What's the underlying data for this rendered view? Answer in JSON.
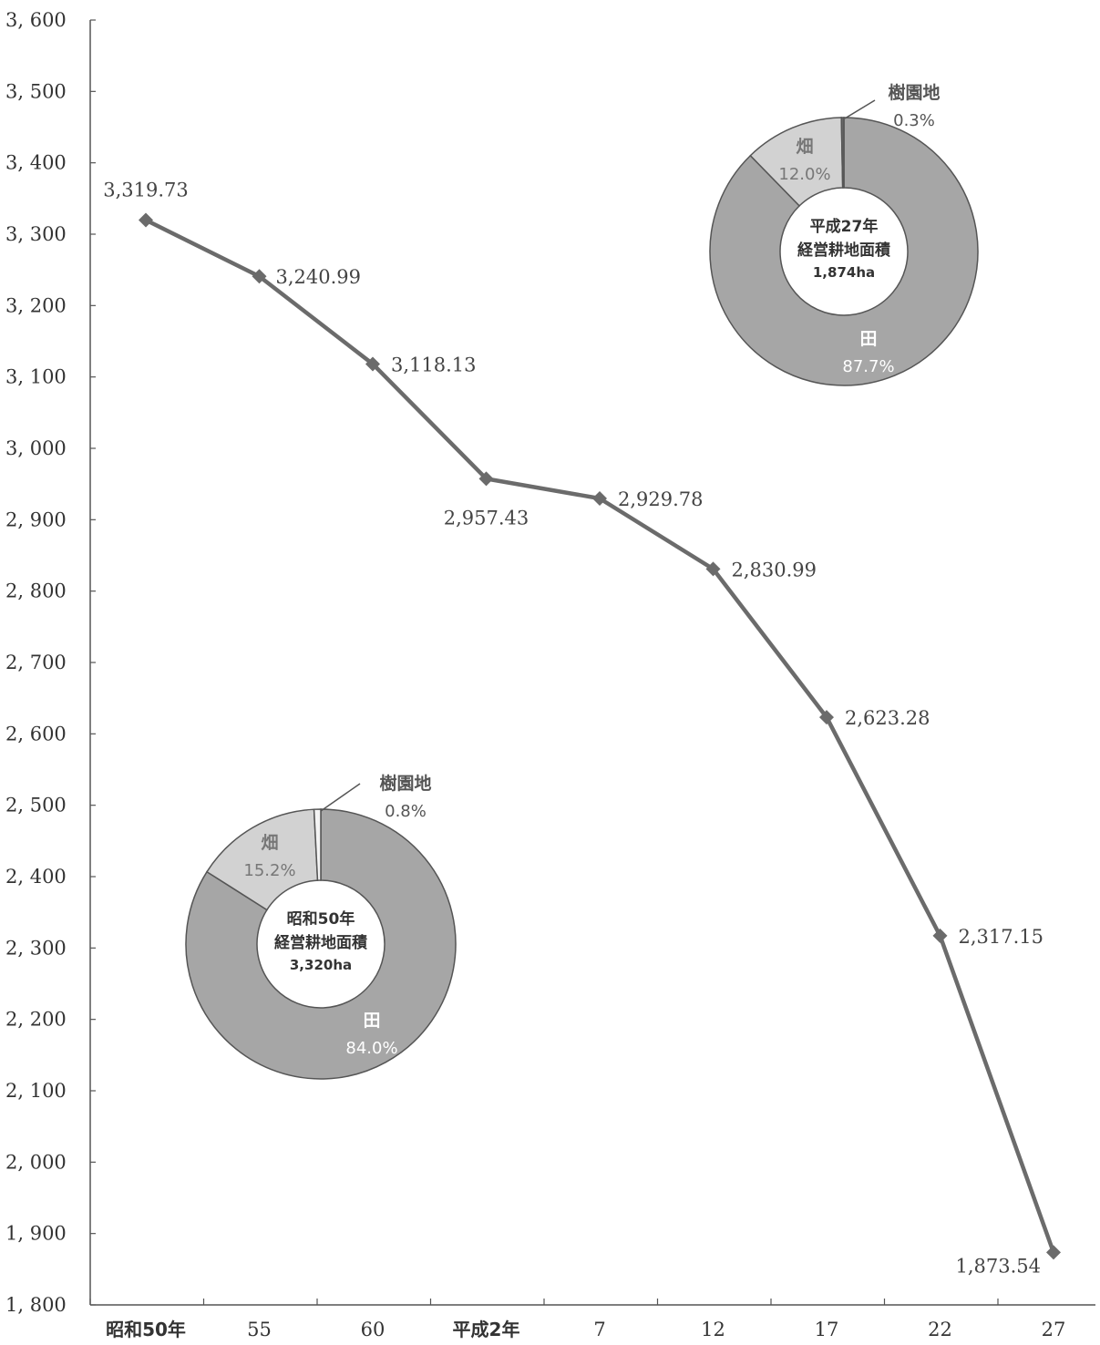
{
  "chart_data": {
    "type": "line",
    "categories": [
      "昭和50年",
      "55",
      "60",
      "平成2年",
      "7",
      "12",
      "17",
      "22",
      "27"
    ],
    "series": [
      {
        "values": [
          3319.73,
          3240.99,
          3118.13,
          2957.43,
          2929.78,
          2830.99,
          2623.28,
          2317.15,
          1873.54
        ],
        "labels": [
          "3,319.73",
          "3,240.99",
          "3,118.13",
          "2,957.43",
          "2,929.78",
          "2,830.99",
          "2,623.28",
          "2,317.15",
          "1,873.54"
        ],
        "color": "#6b6b6b"
      }
    ],
    "ylim": [
      1800,
      3600
    ],
    "y_ticks": [
      {
        "value": 3600,
        "label": "3, 600"
      },
      {
        "value": 3500,
        "label": "3, 500"
      },
      {
        "value": 3400,
        "label": "3, 400"
      },
      {
        "value": 3300,
        "label": "3, 300"
      },
      {
        "value": 3200,
        "label": "3, 200"
      },
      {
        "value": 3100,
        "label": "3, 100"
      },
      {
        "value": 3000,
        "label": "3, 000"
      },
      {
        "value": 2900,
        "label": "2, 900"
      },
      {
        "value": 2800,
        "label": "2, 800"
      },
      {
        "value": 2700,
        "label": "2, 700"
      },
      {
        "value": 2600,
        "label": "2, 600"
      },
      {
        "value": 2500,
        "label": "2, 500"
      },
      {
        "value": 2400,
        "label": "2, 400"
      },
      {
        "value": 2300,
        "label": "2, 300"
      },
      {
        "value": 2200,
        "label": "2, 200"
      },
      {
        "value": 2100,
        "label": "2, 100"
      },
      {
        "value": 2000,
        "label": "2, 000"
      },
      {
        "value": 1900,
        "label": "1, 900"
      },
      {
        "value": 1800,
        "label": "1, 800"
      }
    ],
    "grid": false,
    "donuts": [
      {
        "type": "pie",
        "center_lines": [
          "昭和50年",
          "経営耕地面積",
          "3,320ha"
        ],
        "slices": [
          {
            "name": "田",
            "pct": "84.0%",
            "value": 84.0,
            "color": "#a6a6a6"
          },
          {
            "name": "畑",
            "pct": "15.2%",
            "value": 15.2,
            "color": "#d2d2d2"
          },
          {
            "name": "樹園地",
            "pct": "0.8%",
            "value": 0.8,
            "color": "#f4f4f4"
          }
        ]
      },
      {
        "type": "pie",
        "center_lines": [
          "平成27年",
          "経営耕地面積",
          "1,874ha"
        ],
        "slices": [
          {
            "name": "田",
            "pct": "87.7%",
            "value": 87.7,
            "color": "#a6a6a6"
          },
          {
            "name": "畑",
            "pct": "12.0%",
            "value": 12.0,
            "color": "#d2d2d2"
          },
          {
            "name": "樹園地",
            "pct": "0.3%",
            "value": 0.3,
            "color": "#6b6b6b"
          }
        ]
      }
    ]
  }
}
